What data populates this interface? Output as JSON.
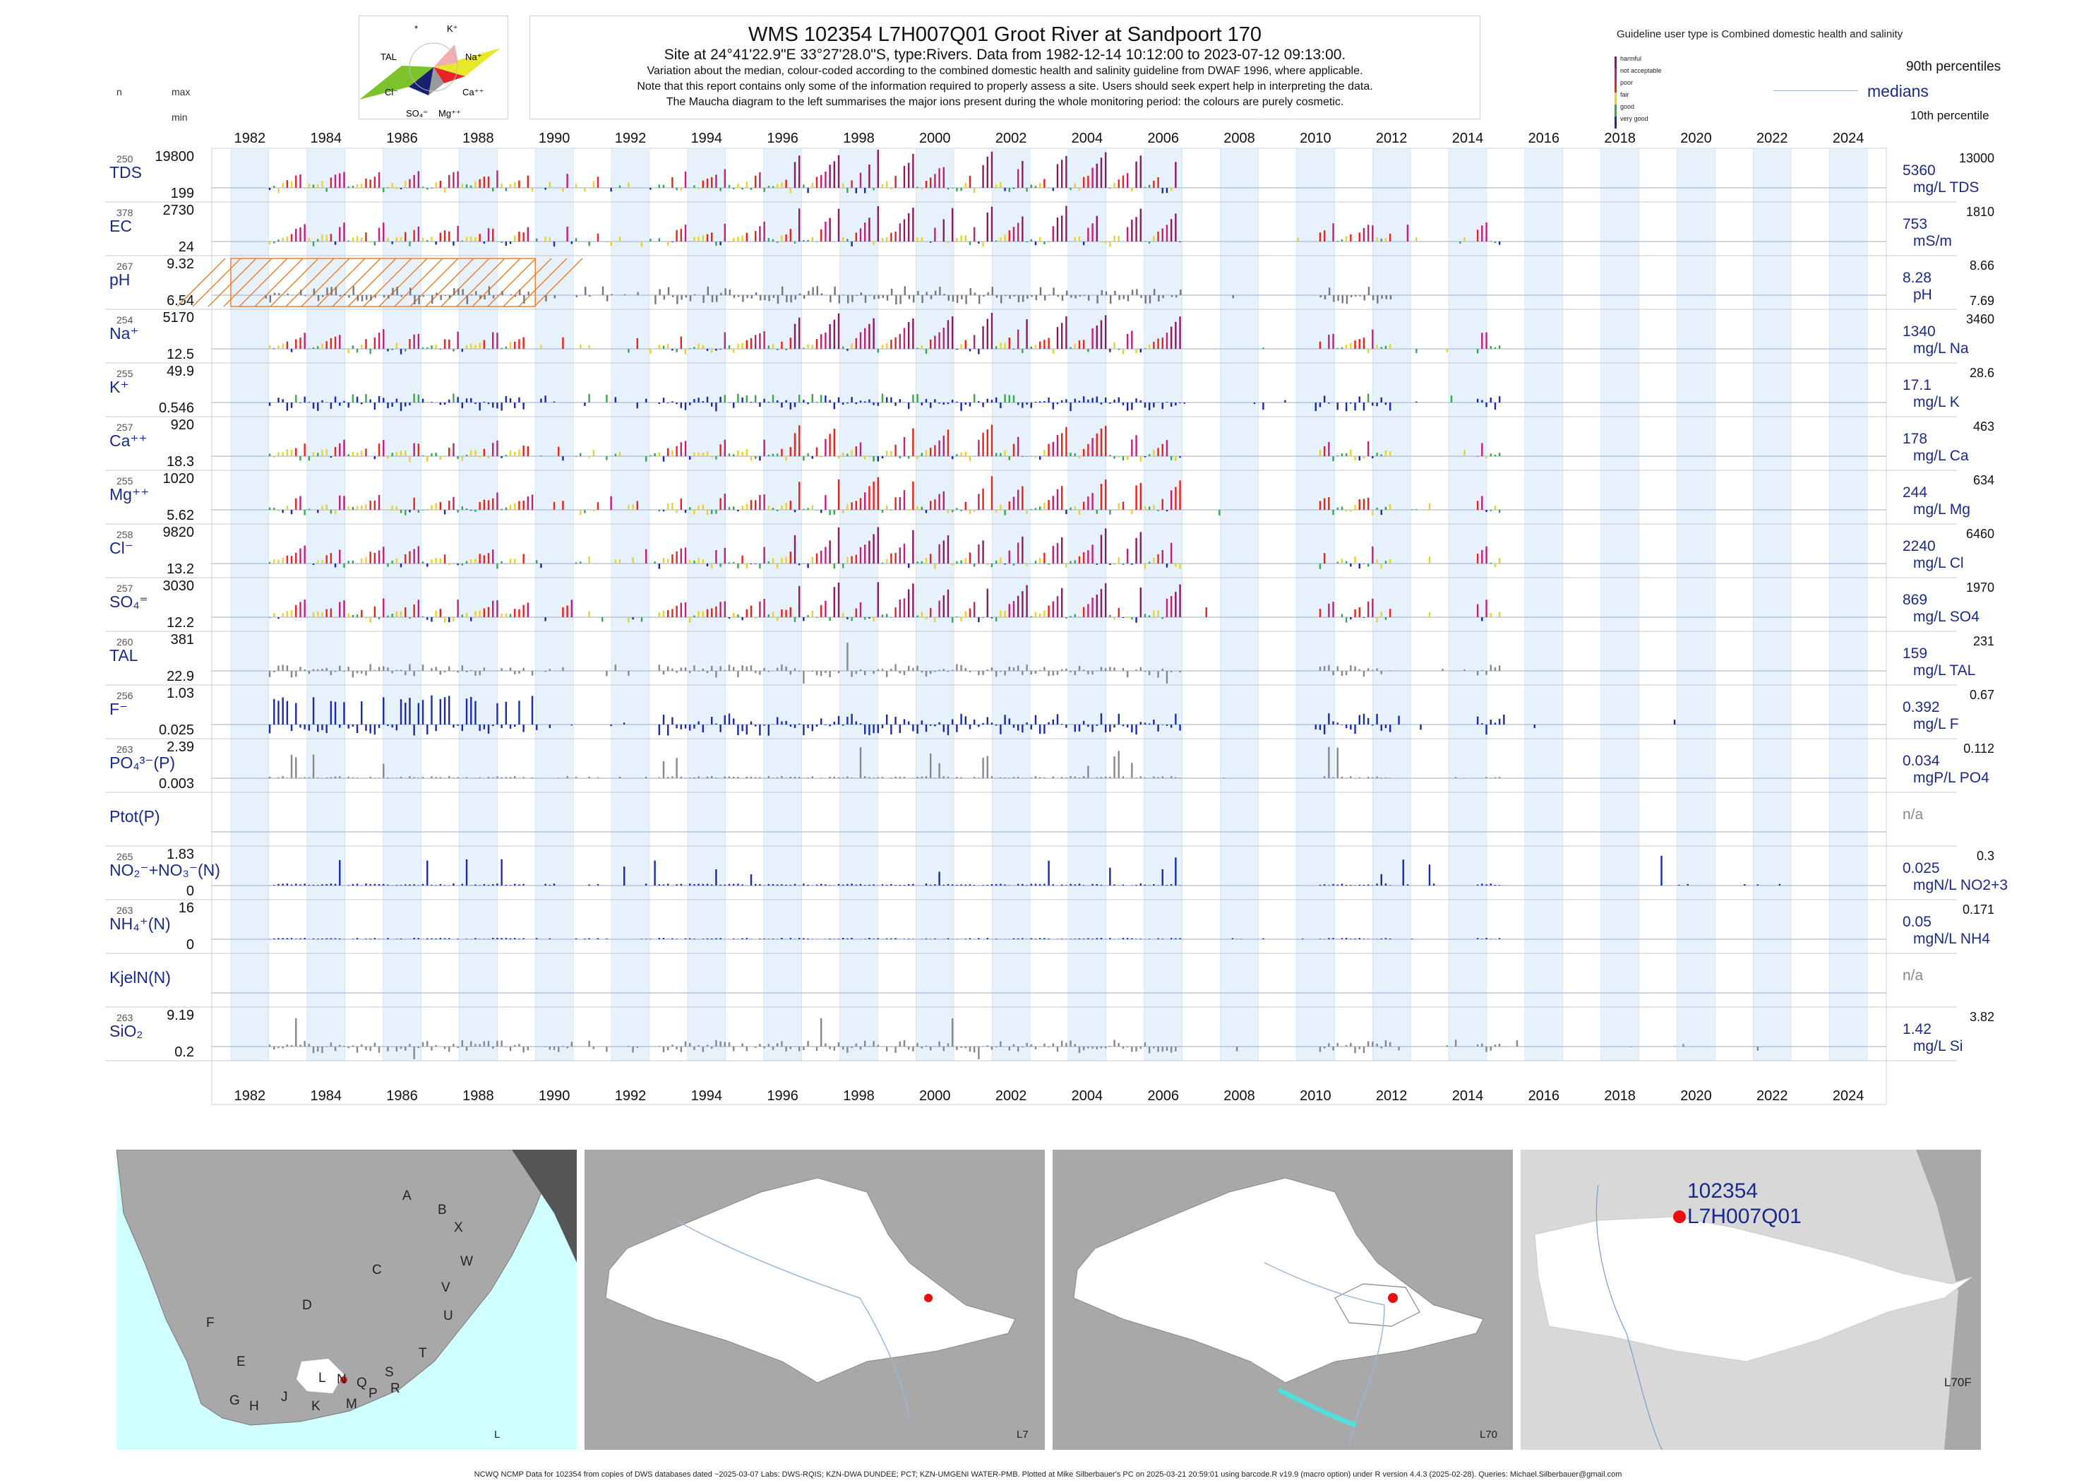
{
  "title": "WMS 102354 L7H007Q01 Groot River at Sandpoort 170",
  "subtitle": "Site at 24°41'22.9\"E 33°27'28.0\"S, type:Rivers.  Data from 1982-12-14 10:12:00 to 2023-07-12 09:13:00.",
  "notes": [
    "Variation about the median,  colour-coded according to the combined domestic health and salinity guideline from DWAF 1996, where applicable.",
    "Note that this report contains only some of the information required to properly assess a site. Users should seek expert help in interpreting the data.",
    "The Maucha diagram to the left summarises the major ions present during the whole monitoring period: the colours are purely cosmetic."
  ],
  "guideline_label": "Guideline user type is Combined domestic health and salinity",
  "legend": {
    "classes": [
      "harmful",
      "not acceptable",
      "poor",
      "fair",
      "good",
      "very good"
    ],
    "class_colors": [
      "#8b1a5f",
      "#c01f7a",
      "#e8231a",
      "#e8d22a",
      "#3aa84a",
      "#1a2aa8"
    ],
    "p90": "90th percentiles",
    "medians": "medians",
    "p10": "10th percentile"
  },
  "left_headers": {
    "n": "n",
    "max": "max",
    "min": "min"
  },
  "maucha": {
    "labels": [
      "*",
      "K⁺",
      "TAL",
      "Na⁺",
      "Cl⁻",
      "Ca⁺⁺",
      "SO₄⁼",
      "Mg⁺⁺"
    ],
    "colors": {
      "na": "#e8e82a",
      "k": "#f0a0a0",
      "ca": "#e8232a",
      "mg": "#9a9a9a",
      "so4": "#1a2070",
      "cl": "#7cc22a",
      "tal": "#ffffff"
    }
  },
  "years": [
    "1982",
    "1984",
    "1986",
    "1988",
    "1990",
    "1992",
    "1994",
    "1996",
    "1998",
    "2000",
    "2002",
    "2004",
    "2006",
    "2008",
    "2010",
    "2012",
    "2014",
    "2016",
    "2018",
    "2020",
    "2022",
    "2024"
  ],
  "rows": [
    {
      "key": "TDS",
      "label": "TDS",
      "n": "250",
      "max": "19800",
      "min": "199",
      "median": "5360",
      "unit": "mg/L TDS",
      "p90": "13000",
      "p10": "",
      "color": "#8b1a5f",
      "pattern": "salt",
      "start": 1983.0,
      "end": 2006.9,
      "amp": 1.0,
      "shading": false
    },
    {
      "key": "EC",
      "label": "EC",
      "n": "378",
      "max": "2730",
      "min": "24",
      "median": "753",
      "unit": "mS/m",
      "p90": "1810",
      "p10": "",
      "color": "#8b1a5f",
      "pattern": "salt",
      "start": 1983.0,
      "end": 2015.4,
      "amp": 1.0,
      "shading": false
    },
    {
      "key": "pH",
      "label": "pH",
      "n": "267",
      "max": "9.32",
      "min": "6.54",
      "median": "8.28",
      "unit": "pH",
      "p90": "8.66",
      "p10": "7.69",
      "color": "#777777",
      "pattern": "ph",
      "start": 1982.9,
      "end": 2012.5,
      "amp": 0.6,
      "shading": true
    },
    {
      "key": "Na",
      "label": "Na⁺",
      "n": "254",
      "max": "5170",
      "min": "12.5",
      "median": "1340",
      "unit": "mg/L Na",
      "p90": "3460",
      "p10": "",
      "color": "#8b1a5f",
      "pattern": "salt",
      "start": 1983.0,
      "end": 2015.4,
      "amp": 1.0,
      "shading": false
    },
    {
      "key": "K",
      "label": "K⁺",
      "n": "255",
      "max": "49.9",
      "min": "0.546",
      "median": "17.1",
      "unit": "mg/L K",
      "p90": "28.6",
      "p10": "",
      "color": "#1a2aa8",
      "pattern": "k",
      "start": 1983.0,
      "end": 2015.4,
      "amp": 0.7,
      "shading": false
    },
    {
      "key": "Ca",
      "label": "Ca⁺⁺",
      "n": "257",
      "max": "920",
      "min": "18.3",
      "median": "178",
      "unit": "mg/L Ca",
      "p90": "463",
      "p10": "",
      "color": "#e8231a",
      "pattern": "salt",
      "start": 1983.0,
      "end": 2015.4,
      "amp": 0.9,
      "shading": false
    },
    {
      "key": "Mg",
      "label": "Mg⁺⁺",
      "n": "255",
      "max": "1020",
      "min": "5.62",
      "median": "244",
      "unit": "mg/L Mg",
      "p90": "634",
      "p10": "",
      "color": "#e8231a",
      "pattern": "salt",
      "start": 1983.0,
      "end": 2015.4,
      "amp": 0.9,
      "shading": false
    },
    {
      "key": "Cl",
      "label": "Cl⁻",
      "n": "258",
      "max": "9820",
      "min": "13.2",
      "median": "2240",
      "unit": "mg/L Cl",
      "p90": "6460",
      "p10": "",
      "color": "#8b1a5f",
      "pattern": "salt",
      "start": 1983.0,
      "end": 2015.4,
      "amp": 1.0,
      "shading": false
    },
    {
      "key": "SO4",
      "label": "SO₄⁼",
      "n": "257",
      "max": "3030",
      "min": "12.2",
      "median": "869",
      "unit": "mg/L SO4",
      "p90": "1970",
      "p10": "",
      "color": "#8b1a5f",
      "pattern": "salt",
      "start": 1983.0,
      "end": 2015.4,
      "amp": 1.0,
      "shading": false
    },
    {
      "key": "TAL",
      "label": "TAL",
      "n": "260",
      "max": "381",
      "min": "22.9",
      "median": "159",
      "unit": "mg/L TAL",
      "p90": "231",
      "p10": "",
      "color": "#888888",
      "pattern": "tal",
      "start": 1983.0,
      "end": 2015.4,
      "amp": 0.6,
      "shading": false
    },
    {
      "key": "F",
      "label": "F⁻",
      "n": "256",
      "max": "1.03",
      "min": "0.025",
      "median": "0.392",
      "unit": "mg/L F",
      "p90": "0.67",
      "p10": "",
      "color": "#1a2aa8",
      "pattern": "f",
      "start": 1983.0,
      "end": 2022.8,
      "amp": 0.8,
      "shading": false
    },
    {
      "key": "PO4",
      "label": "PO₄³⁻(P)",
      "n": "263",
      "max": "2.39",
      "min": "0.003",
      "median": "0.034",
      "unit": "mgP/L PO4",
      "p90": "0.112",
      "p10": "",
      "color": "#888888",
      "pattern": "spike",
      "start": 1983.0,
      "end": 2015.4,
      "amp": 0.5,
      "shading": false
    },
    {
      "key": "Ptot",
      "label": "Ptot(P)",
      "n": "",
      "max": "",
      "min": "",
      "median": "n/a",
      "unit": "",
      "p90": "",
      "p10": "",
      "color": "#888888",
      "pattern": "none",
      "start": 0,
      "end": 0,
      "amp": 0,
      "shading": false
    },
    {
      "key": "NOx",
      "label": "NO₂⁻+NO₃⁻(N)",
      "n": "265",
      "max": "1.83",
      "min": "0",
      "median": "0.025",
      "unit": "mgN/L NO2+3",
      "p90": "0.3",
      "p10": "",
      "color": "#1a2aa8",
      "pattern": "spike",
      "start": 1983.0,
      "end": 2023.0,
      "amp": 0.6,
      "shading": false
    },
    {
      "key": "NH4",
      "label": "NH₄⁺(N)",
      "n": "263",
      "max": "16",
      "min": "0",
      "median": "0.05",
      "unit": "mgN/L NH4",
      "p90": "0.171",
      "p10": "",
      "color": "#1a2aa8",
      "pattern": "nh4",
      "start": 1983.0,
      "end": 2015.4,
      "amp": 0.2,
      "shading": false
    },
    {
      "key": "Kjel",
      "label": "KjelN(N)",
      "n": "",
      "max": "",
      "min": "",
      "median": "n/a",
      "unit": "",
      "p90": "",
      "p10": "",
      "color": "#888888",
      "pattern": "none",
      "start": 0,
      "end": 0,
      "amp": 0,
      "shading": false
    },
    {
      "key": "SiO2",
      "label": "SiO₂",
      "n": "263",
      "max": "9.19",
      "min": "0.2",
      "median": "1.42",
      "unit": "mg/L Si",
      "p90": "3.82",
      "p10": "",
      "color": "#888888",
      "pattern": "tal",
      "start": 1983.0,
      "end": 2023.0,
      "amp": 0.6,
      "shading": false
    }
  ],
  "maps": [
    {
      "label": "L",
      "letters": [
        "A",
        "B",
        "X",
        "W",
        "C",
        "V",
        "U",
        "D",
        "T",
        "F",
        "E",
        "G",
        "H",
        "J",
        "K",
        "L",
        "N",
        "M",
        "Q",
        "P",
        "S",
        "R"
      ]
    },
    {
      "label": "L7"
    },
    {
      "label": "L70"
    },
    {
      "label": "L70F",
      "site_id": "102354",
      "site_code": "L7H007Q01"
    }
  ],
  "footer": "NCWQ NCMP Data for 102354 from copies of DWS databases dated ~2025-03-07 Labs: DWS-RQIS; KZN-DWA DUNDEE; PCT; KZN-UMGENI WATER-PMB. Plotted at Mike Silberbauer's PC on 2025-03-21 20:59:01 using barcode.R v19.9 (macro option) under R version 4.4.3 (2025-02-28). Queries: Michael.Silberbauer@gmail.com",
  "chart_data": {
    "type": "bar",
    "title": "WMS 102354 L7H007Q01 Groot River at Sandpoort 170",
    "xlabel": "",
    "ylabel": "",
    "xlim": [
      1981.5,
      2025.5
    ],
    "x_ticks": [
      1982,
      1984,
      1986,
      1988,
      1990,
      1992,
      1994,
      1996,
      1998,
      2000,
      2002,
      2004,
      2006,
      2008,
      2010,
      2012,
      2014,
      2016,
      2018,
      2020,
      2022,
      2024
    ],
    "grid": false,
    "legend_position": "top-right",
    "series": [
      {
        "name": "TDS",
        "n": 250,
        "max": 19800,
        "min": 199,
        "median": 5360,
        "p90": 13000
      },
      {
        "name": "EC",
        "n": 378,
        "max": 2730,
        "min": 24,
        "median": 753,
        "p90": 1810
      },
      {
        "name": "pH",
        "n": 267,
        "max": 9.32,
        "min": 6.54,
        "median": 8.28,
        "p90": 8.66,
        "p10": 7.69
      },
      {
        "name": "Na⁺",
        "n": 254,
        "max": 5170,
        "min": 12.5,
        "median": 1340,
        "p90": 3460
      },
      {
        "name": "K⁺",
        "n": 255,
        "max": 49.9,
        "min": 0.546,
        "median": 17.1,
        "p90": 28.6
      },
      {
        "name": "Ca⁺⁺",
        "n": 257,
        "max": 920,
        "min": 18.3,
        "median": 178,
        "p90": 463
      },
      {
        "name": "Mg⁺⁺",
        "n": 255,
        "max": 1020,
        "min": 5.62,
        "median": 244,
        "p90": 634
      },
      {
        "name": "Cl⁻",
        "n": 258,
        "max": 9820,
        "min": 13.2,
        "median": 2240,
        "p90": 6460
      },
      {
        "name": "SO₄⁼",
        "n": 257,
        "max": 3030,
        "min": 12.2,
        "median": 869,
        "p90": 1970
      },
      {
        "name": "TAL",
        "n": 260,
        "max": 381,
        "min": 22.9,
        "median": 159,
        "p90": 231
      },
      {
        "name": "F⁻",
        "n": 256,
        "max": 1.03,
        "min": 0.025,
        "median": 0.392,
        "p90": 0.67
      },
      {
        "name": "PO₄³⁻(P)",
        "n": 263,
        "max": 2.39,
        "min": 0.003,
        "median": 0.034,
        "p90": 0.112
      },
      {
        "name": "NO₂⁻+NO₃⁻(N)",
        "n": 265,
        "max": 1.83,
        "min": 0,
        "median": 0.025,
        "p90": 0.3
      },
      {
        "name": "NH₄⁺(N)",
        "n": 263,
        "max": 16,
        "min": 0,
        "median": 0.05,
        "p90": 0.171
      },
      {
        "name": "SiO₂",
        "n": 263,
        "max": 9.19,
        "min": 0.2,
        "median": 1.42,
        "p90": 3.82
      }
    ]
  }
}
